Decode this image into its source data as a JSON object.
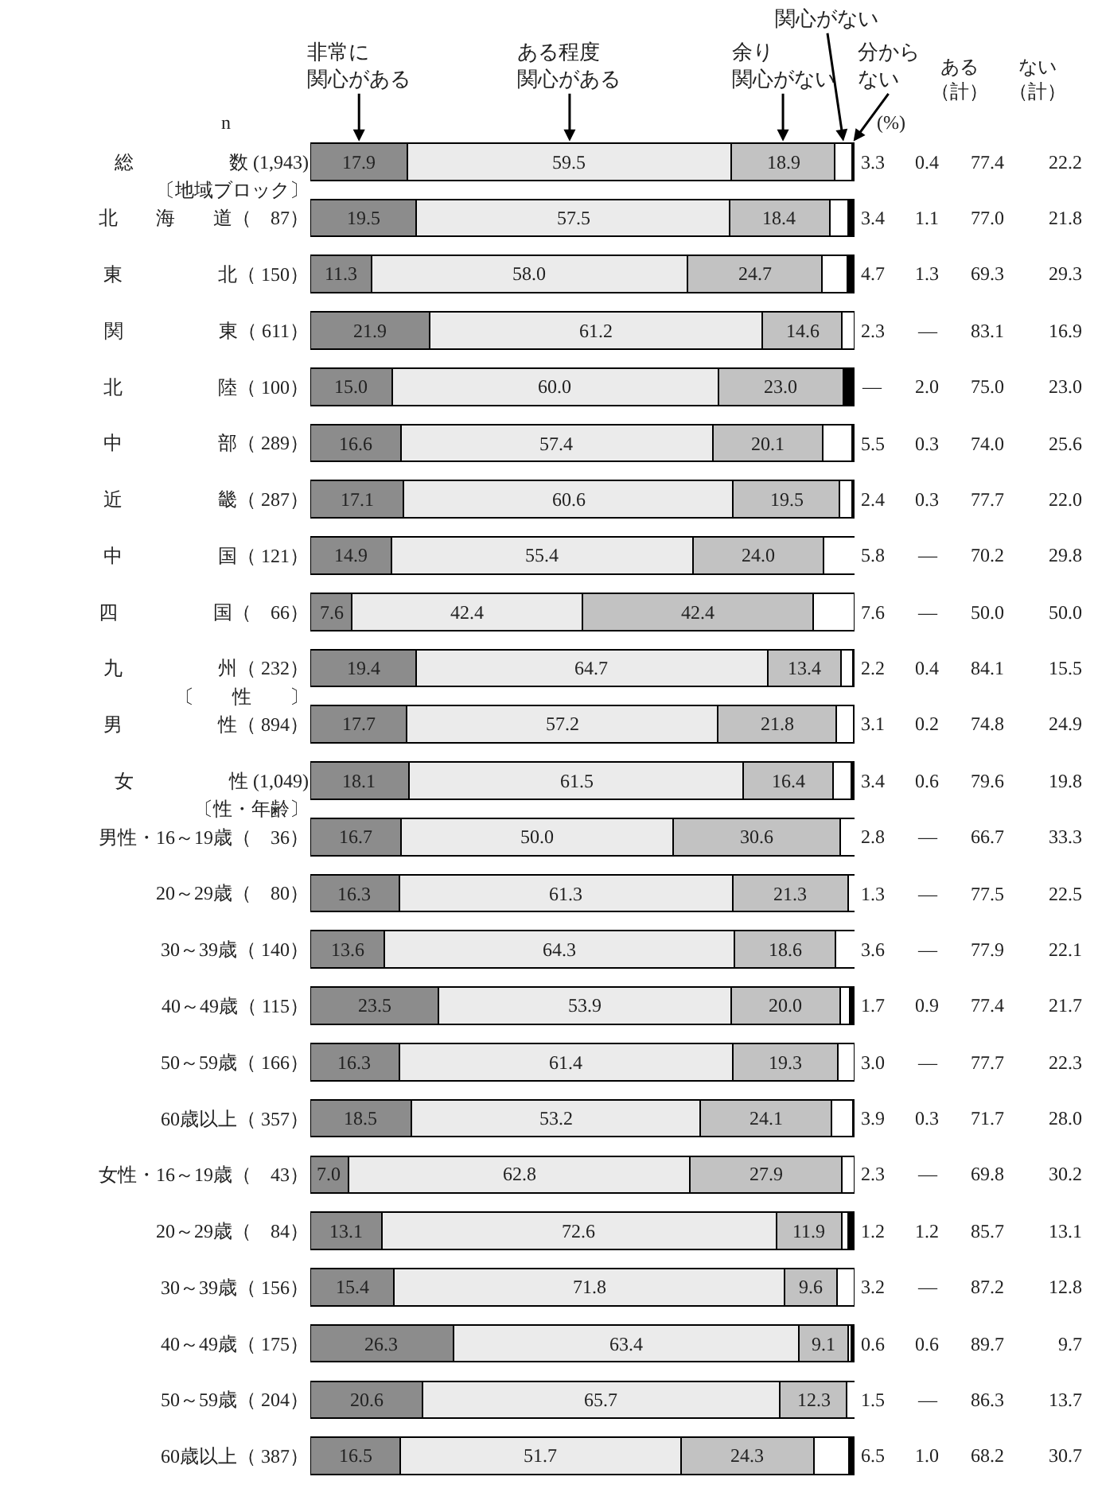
{
  "chart_data": {
    "type": "bar",
    "orientation": "horizontal",
    "stacked": true,
    "tick_labels": "y",
    "xlim": [
      0,
      100
    ],
    "categories": [
      "総　　　　　数 (1,943)",
      "〔地域ブロック〕",
      "北　　海　　道（　87）",
      "東　　　　　北（ 150）",
      "関　　　　　東（ 611）",
      "北　　　　　陸（ 100）",
      "中　　　　　部（ 289）",
      "近　　　　　畿（ 287）",
      "中　　　　　国（ 121）",
      "四　　　　　国（　66）",
      "九　　　　　州（ 232）",
      "〔　　性　　〕",
      "男　　　　　性（ 894）",
      "女　　　　　性 (1,049)",
      "〔性・年齢〕",
      "男性・16～19歳（　36）",
      "20～29歳（　80）",
      "30～39歳（ 140）",
      "40～49歳（ 115）",
      "50～59歳（ 166）",
      "60歳以上（ 357）",
      "女性・16～19歳（　43）",
      "20～29歳（　84）",
      "30～39歳（ 156）",
      "40～49歳（ 175）",
      "50～59歳（ 204）",
      "60歳以上（ 387）"
    ],
    "series": [
      {
        "name": "非常に関心がある",
        "color": "#8c8c8c",
        "values": [
          17.9,
          null,
          19.5,
          11.3,
          21.9,
          15.0,
          16.6,
          17.1,
          14.9,
          7.6,
          19.4,
          null,
          17.7,
          18.1,
          null,
          16.7,
          16.3,
          13.6,
          23.5,
          16.3,
          18.5,
          7.0,
          13.1,
          15.4,
          26.3,
          20.6,
          16.5
        ],
        "value_labels": [
          "17.9",
          null,
          "19.5",
          "11.3",
          "21.9",
          "15.0",
          "16.6",
          "17.1",
          "14.9",
          "7.6",
          "19.4",
          null,
          "17.7",
          "18.1",
          null,
          "16.7",
          "16.3",
          "13.6",
          "23.5",
          "16.3",
          "18.5",
          "7.0",
          "13.1",
          "15.4",
          "26.3",
          "20.6",
          "16.5"
        ]
      },
      {
        "name": "ある程度関心がある",
        "color": "#ebebeb",
        "values": [
          59.5,
          null,
          57.5,
          58.0,
          61.2,
          60.0,
          57.4,
          60.6,
          55.4,
          42.4,
          64.7,
          null,
          57.2,
          61.5,
          null,
          50.0,
          61.3,
          64.3,
          53.9,
          61.4,
          53.2,
          62.8,
          72.6,
          71.8,
          63.4,
          65.7,
          51.7
        ],
        "value_labels": [
          "59.5",
          null,
          "57.5",
          "58.0",
          "61.2",
          "60.0",
          "57.4",
          "60.6",
          "55.4",
          "42.4",
          "64.7",
          null,
          "57.2",
          "61.5",
          null,
          "50.0",
          "61.3",
          "64.3",
          "53.9",
          "61.4",
          "53.2",
          "62.8",
          "72.6",
          "71.8",
          "63.4",
          "65.7",
          "51.7"
        ]
      },
      {
        "name": "余り関心がない",
        "color": "#c2c2c2",
        "values": [
          18.9,
          null,
          18.4,
          24.7,
          14.6,
          23.0,
          20.1,
          19.5,
          24.0,
          42.4,
          13.4,
          null,
          21.8,
          16.4,
          null,
          30.6,
          21.3,
          18.6,
          20.0,
          19.3,
          24.1,
          27.9,
          11.9,
          9.6,
          9.1,
          12.3,
          24.3
        ],
        "value_labels": [
          "18.9",
          null,
          "18.4",
          "24.7",
          "14.6",
          "23.0",
          "20.1",
          "19.5",
          "24.0",
          "42.4",
          "13.4",
          null,
          "21.8",
          "16.4",
          null,
          "30.6",
          "21.3",
          "18.6",
          "20.0",
          "19.3",
          "24.1",
          "27.9",
          "11.9",
          "9.6",
          "9.1",
          "12.3",
          "24.3"
        ]
      },
      {
        "name": "関心がない",
        "color": "#ffffff",
        "values": [
          3.3,
          null,
          3.4,
          4.7,
          2.3,
          0,
          5.5,
          2.4,
          5.8,
          7.6,
          2.2,
          null,
          3.1,
          3.4,
          null,
          2.8,
          1.3,
          3.6,
          1.7,
          3.0,
          3.9,
          2.3,
          1.2,
          3.2,
          0.6,
          1.5,
          6.5
        ],
        "value_labels": [
          "3.3",
          null,
          "3.4",
          "4.7",
          "2.3",
          "—",
          "5.5",
          "2.4",
          "5.8",
          "7.6",
          "2.2",
          null,
          "3.1",
          "3.4",
          null,
          "2.8",
          "1.3",
          "3.6",
          "1.7",
          "3.0",
          "3.9",
          "2.3",
          "1.2",
          "3.2",
          "0.6",
          "1.5",
          "6.5"
        ]
      },
      {
        "name": "分からない",
        "color": "#000000",
        "values": [
          0.4,
          null,
          1.1,
          1.3,
          0,
          2.0,
          0.3,
          0.3,
          0,
          0,
          0.4,
          null,
          0.2,
          0.6,
          null,
          0,
          0,
          0,
          0.9,
          0,
          0.3,
          0,
          1.2,
          0,
          0.6,
          0,
          1.0
        ],
        "value_labels": [
          "0.4",
          null,
          "1.1",
          "1.3",
          "—",
          "2.0",
          "0.3",
          "0.3",
          "—",
          "—",
          "0.4",
          null,
          "0.2",
          "0.6",
          null,
          "—",
          "—",
          "—",
          "0.9",
          "—",
          "0.3",
          "—",
          "1.2",
          "—",
          "0.6",
          "—",
          "1.0"
        ]
      }
    ],
    "annotations": [
      "n",
      "(%)",
      "ある（計）",
      "ない（計）",
      "77.4",
      "22.2",
      "77.0",
      "21.8",
      "69.3",
      "29.3",
      "83.1",
      "16.9",
      "75.0",
      "23.0",
      "74.0",
      "25.6",
      "77.7",
      "22.0",
      "70.2",
      "29.8",
      "50.0",
      "50.0",
      "84.1",
      "15.5",
      "74.8",
      "24.9",
      "79.6",
      "19.8",
      "66.7",
      "33.3",
      "77.5",
      "22.5",
      "77.9",
      "22.1",
      "77.4",
      "21.7",
      "77.7",
      "22.3",
      "71.7",
      "28.0",
      "69.8",
      "30.2",
      "85.7",
      "13.1",
      "87.2",
      "12.8",
      "89.7",
      "9.7",
      "86.3",
      "13.7",
      "68.2",
      "30.7"
    ]
  }
}
